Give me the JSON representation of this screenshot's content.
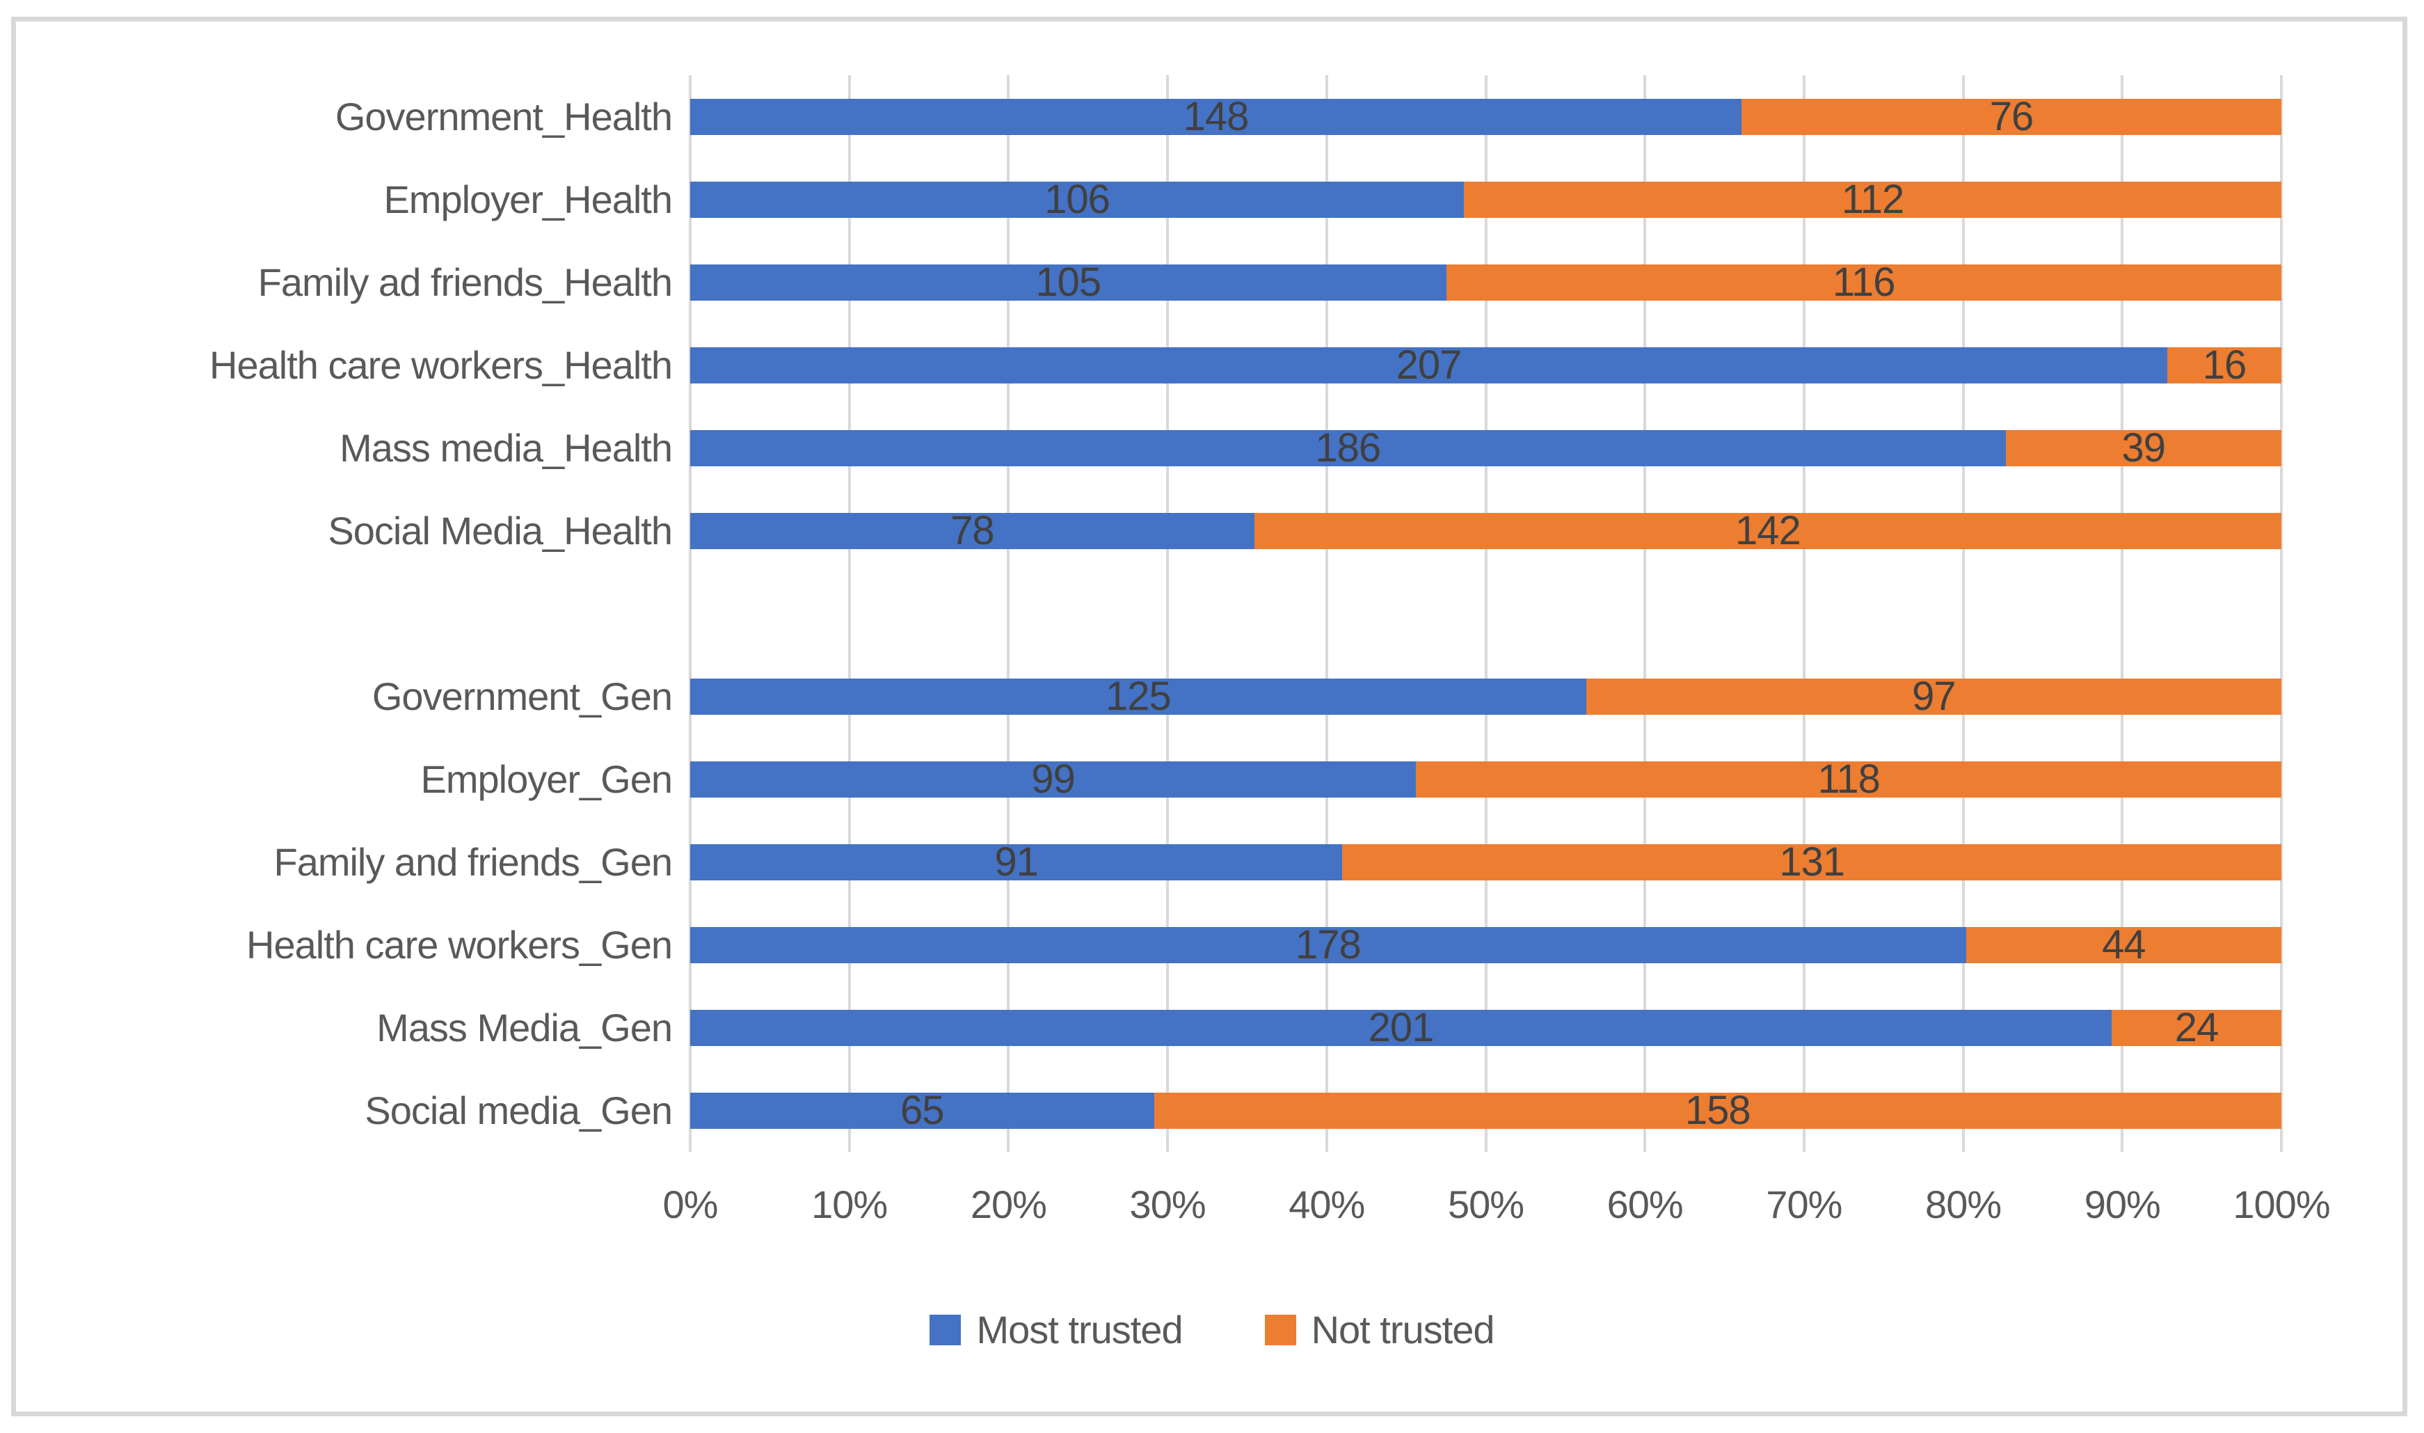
{
  "chart_data": {
    "type": "bar",
    "subtype": "horizontal-stacked-100-percent",
    "title": "",
    "xlabel": "",
    "ylabel": "",
    "xlim": [
      0,
      100
    ],
    "grid": true,
    "legend_position": "bottom",
    "series": [
      {
        "name": "Most trusted",
        "color": "#4472C4"
      },
      {
        "name": "Not trusted",
        "color": "#ED7D31"
      }
    ],
    "groups": [
      {
        "name": "Health",
        "rows": [
          {
            "label": "Government_Health",
            "values": [
              148,
              76
            ]
          },
          {
            "label": "Employer_Health",
            "values": [
              106,
              112
            ]
          },
          {
            "label": "Family ad friends_Health",
            "values": [
              105,
              116
            ]
          },
          {
            "label": "Health care workers_Health",
            "values": [
              207,
              16
            ]
          },
          {
            "label": "Mass media_Health",
            "values": [
              186,
              39
            ]
          },
          {
            "label": "Social Media_Health",
            "values": [
              78,
              142
            ]
          }
        ]
      },
      {
        "name": "Gen",
        "rows": [
          {
            "label": "Government_Gen",
            "values": [
              125,
              97
            ]
          },
          {
            "label": "Employer_Gen",
            "values": [
              99,
              118
            ]
          },
          {
            "label": "Family and friends_Gen",
            "values": [
              91,
              131
            ]
          },
          {
            "label": "Health care workers_Gen",
            "values": [
              178,
              44
            ]
          },
          {
            "label": "Mass Media_Gen",
            "values": [
              201,
              24
            ]
          },
          {
            "label": "Social media_Gen",
            "values": [
              65,
              158
            ]
          }
        ]
      }
    ],
    "x_ticks": [
      "0%",
      "10%",
      "20%",
      "30%",
      "40%",
      "50%",
      "60%",
      "70%",
      "80%",
      "90%",
      "100%"
    ],
    "colors": {
      "gridline": "#D9D9D9",
      "frame_border": "#D8D8D8",
      "category_text": "#595959",
      "value_text": "#404040"
    }
  }
}
